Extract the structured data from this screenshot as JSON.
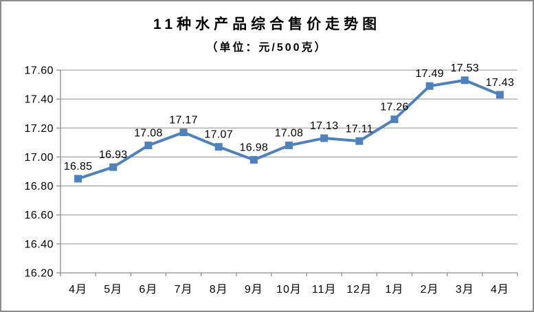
{
  "chart_data": {
    "type": "line",
    "title": "11种水产品综合售价走势图",
    "subtitle": "（单位：元/500克）",
    "categories": [
      "4月",
      "5月",
      "6月",
      "7月",
      "8月",
      "9月",
      "10月",
      "11月",
      "12月",
      "1月",
      "2月",
      "3月",
      "4月"
    ],
    "values": [
      16.85,
      16.93,
      17.08,
      17.17,
      17.07,
      16.98,
      17.08,
      17.13,
      17.11,
      17.26,
      17.49,
      17.53,
      17.43
    ],
    "data_labels": [
      "16.85",
      "16.93",
      "17.08",
      "17.17",
      "17.07",
      "16.98",
      "17.08",
      "17.13",
      "17.11",
      "17.26",
      "17.49",
      "17.53",
      "17.43"
    ],
    "ylim": [
      16.2,
      17.6
    ],
    "ytick_step": 0.2,
    "ytick_labels": [
      "16.20",
      "16.40",
      "16.60",
      "16.80",
      "17.00",
      "17.20",
      "17.40",
      "17.60"
    ],
    "grid": true,
    "legend": "none",
    "marker": "square",
    "colors": {
      "line": "#4F81BD",
      "marker": "#4F81BD",
      "gridline": "#A6A6A6",
      "axis": "#8C8C8C",
      "text": "#000000",
      "frame_border": "#8C8C8C",
      "background": "#FFFFFF"
    }
  }
}
